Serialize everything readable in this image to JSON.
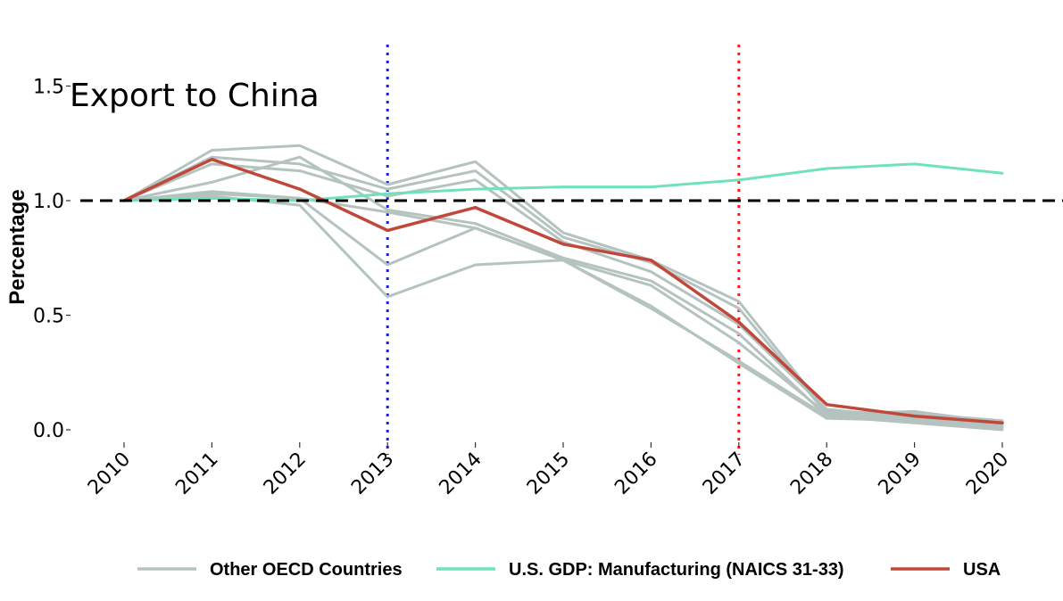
{
  "chart_data": {
    "type": "line",
    "title": "Export to China",
    "xlabel": "",
    "ylabel": "Percentage",
    "x": [
      2010,
      2011,
      2012,
      2013,
      2014,
      2015,
      2016,
      2017,
      2018,
      2019,
      2020
    ],
    "xlim": [
      2010,
      2020
    ],
    "ylim": [
      -0.07,
      1.67
    ],
    "y_ticks": [
      0.0,
      0.5,
      1.0,
      1.5
    ],
    "y_tick_labels": [
      "0.0",
      "0.5",
      "1.0",
      "1.5"
    ],
    "grid": false,
    "legend_position": "bottom",
    "reference_lines": [
      {
        "orientation": "horizontal",
        "value": 1.0,
        "style": "dashed",
        "color": "#000000"
      },
      {
        "orientation": "vertical",
        "value": 2013,
        "style": "dotted",
        "color": "#1a1aff"
      },
      {
        "orientation": "vertical",
        "value": 2017,
        "style": "dotted",
        "color": "#ff1a1a"
      }
    ],
    "series": [
      {
        "name": "Other OECD Countries",
        "color": "#b5c3c0",
        "values": [
          1.0,
          1.22,
          1.24,
          1.07,
          1.17,
          0.86,
          0.74,
          0.56,
          0.08,
          0.07,
          0.04
        ]
      },
      {
        "name": "Other OECD Countries",
        "color": "#b5c3c0",
        "values": [
          1.0,
          1.19,
          1.16,
          1.05,
          1.13,
          0.84,
          0.73,
          0.53,
          0.07,
          0.08,
          0.03
        ]
      },
      {
        "name": "Other OECD Countries",
        "color": "#b5c3c0",
        "values": [
          1.0,
          1.16,
          1.13,
          1.02,
          1.09,
          0.82,
          0.69,
          0.46,
          0.09,
          0.05,
          0.02
        ]
      },
      {
        "name": "Other OECD Countries",
        "color": "#b5c3c0",
        "values": [
          1.0,
          1.08,
          1.19,
          0.96,
          0.9,
          0.75,
          0.65,
          0.42,
          0.06,
          0.04,
          0.02
        ]
      },
      {
        "name": "Other OECD Countries",
        "color": "#b5c3c0",
        "values": [
          1.0,
          1.03,
          1.01,
          0.95,
          0.88,
          0.74,
          0.63,
          0.38,
          0.07,
          0.05,
          0.01
        ]
      },
      {
        "name": "Other OECD Countries",
        "color": "#b5c3c0",
        "values": [
          1.0,
          1.04,
          1.01,
          0.72,
          0.88,
          0.74,
          0.53,
          0.3,
          0.06,
          0.03,
          0.0
        ]
      },
      {
        "name": "Other OECD Countries",
        "color": "#b5c3c0",
        "values": [
          1.0,
          1.02,
          0.98,
          0.58,
          0.72,
          0.74,
          0.54,
          0.29,
          0.05,
          0.04,
          0.01
        ]
      },
      {
        "name": "U.S. GDP: Manufacturing (NAICS 31-33)",
        "color": "#6fe3b7",
        "values": [
          1.0,
          1.01,
          1.0,
          1.03,
          1.05,
          1.06,
          1.06,
          1.09,
          1.14,
          1.16,
          1.12
        ]
      },
      {
        "name": "USA",
        "color": "#c0483a",
        "values": [
          1.0,
          1.18,
          1.05,
          0.87,
          0.97,
          0.81,
          0.74,
          0.47,
          0.11,
          0.06,
          0.03
        ]
      }
    ],
    "legend": [
      {
        "label": "Other OECD Countries",
        "color": "#b5c3c0"
      },
      {
        "label": "U.S. GDP: Manufacturing (NAICS 31-33)",
        "color": "#6fe3b7"
      },
      {
        "label": "USA",
        "color": "#c0483a"
      }
    ]
  }
}
